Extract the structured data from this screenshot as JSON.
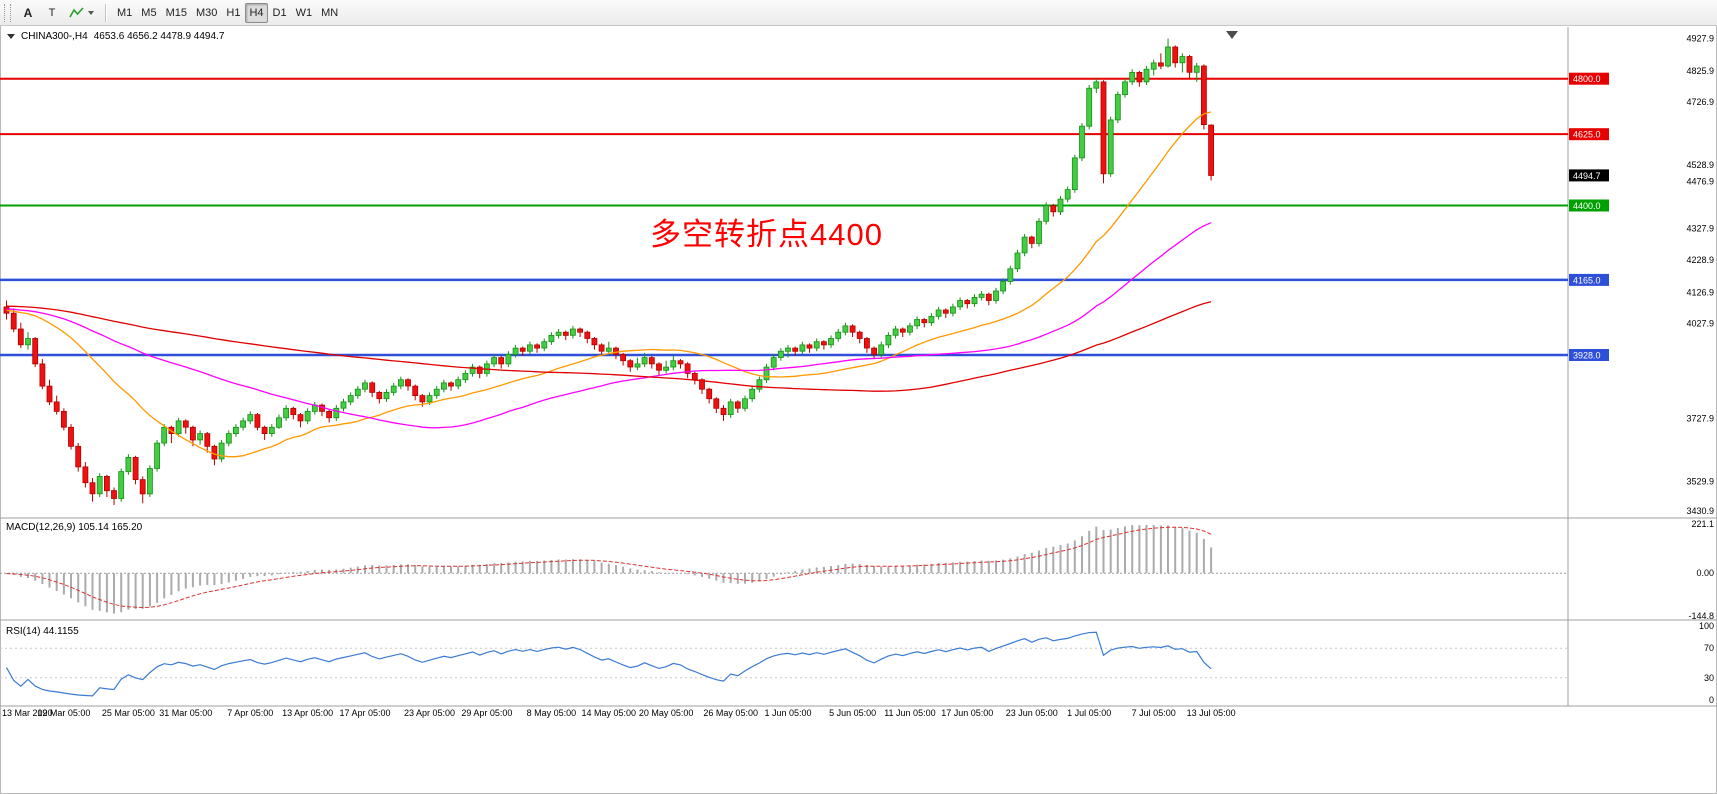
{
  "toolbar": {
    "text_tool_label": "A",
    "textbox_tool_label": "T",
    "timeframes": [
      {
        "label": "M1",
        "active": false
      },
      {
        "label": "M5",
        "active": false
      },
      {
        "label": "M15",
        "active": false
      },
      {
        "label": "M30",
        "active": false
      },
      {
        "label": "H1",
        "active": false
      },
      {
        "label": "H4",
        "active": true
      },
      {
        "label": "D1",
        "active": false
      },
      {
        "label": "W1",
        "active": false
      },
      {
        "label": "MN",
        "active": false
      }
    ]
  },
  "chart": {
    "title_symbol": "CHINA300-,H4",
    "title_ohlc": "4653.6 4656.2 4478.9 4494.7"
  },
  "chart_data": {
    "type": "candlestick",
    "symbol": "CHINA300",
    "timeframe": "H4",
    "ohlc_current": {
      "open": 4653.6,
      "high": 4656.2,
      "low": 4478.9,
      "close": 4494.7
    },
    "y_range": {
      "min": 3420,
      "max": 4960
    },
    "annotation": {
      "text": "多空转折点4400",
      "color": "#ff0000"
    },
    "current_price": {
      "value": 4494.7,
      "label": "4494.7",
      "color": "#000000"
    },
    "levels": [
      {
        "value": 4800,
        "label": "4800.0",
        "color": "#e60000",
        "w": 2
      },
      {
        "value": 4625,
        "label": "4625.0",
        "color": "#e60000",
        "w": 2
      },
      {
        "value": 4400,
        "label": "4400.0",
        "color": "#00a000",
        "w": 2
      },
      {
        "value": 4165,
        "label": "4165.0",
        "color": "#2e4fd7",
        "w": 2.5
      },
      {
        "value": 3928,
        "label": "3928.0",
        "color": "#2e4fd7",
        "w": 2.5
      }
    ],
    "y_axis_ticks": [
      {
        "value": 4927,
        "label": "4927.9"
      },
      {
        "value": 4825,
        "label": "4825.9"
      },
      {
        "value": 4726,
        "label": "4726.9"
      },
      {
        "value": 4528,
        "label": "4528.9"
      },
      {
        "value": 4476,
        "label": "4476.9"
      },
      {
        "value": 4327,
        "label": "4327.9"
      },
      {
        "value": 4228,
        "label": "4228.9"
      },
      {
        "value": 4126,
        "label": "4126.9"
      },
      {
        "value": 4027,
        "label": "4027.9"
      },
      {
        "value": 3727,
        "label": "3727.9"
      },
      {
        "value": 3529,
        "label": "3529.9"
      },
      {
        "value": 3430,
        "label": "3430.9"
      }
    ],
    "x_labels": [
      "13 Mar 2020",
      "19 Mar 05:00",
      "25 Mar 05:00",
      "31 Mar 05:00",
      "7 Apr 05:00",
      "13 Apr 05:00",
      "17 Apr 05:00",
      "23 Apr 05:00",
      "29 Apr 05:00",
      "8 May 05:00",
      "14 May 05:00",
      "20 May 05:00",
      "26 May 05:00",
      "1 Jun 05:00",
      "5 Jun 05:00",
      "11 Jun 05:00",
      "17 Jun 05:00",
      "23 Jun 05:00",
      "1 Jul 05:00",
      "7 Jul 05:00",
      "13 Jul 05:00"
    ],
    "moving_averages": [
      {
        "period": 24,
        "color": "#ff9900"
      },
      {
        "period": 55,
        "color": "#ff00ff"
      },
      {
        "period": 120,
        "color": "#e00000"
      }
    ],
    "candles": [
      [
        4080,
        4100,
        4040,
        4060
      ],
      [
        4060,
        4075,
        4000,
        4010
      ],
      [
        4010,
        4030,
        3950,
        3960
      ],
      [
        3960,
        4000,
        3945,
        3980
      ],
      [
        3980,
        3985,
        3890,
        3900
      ],
      [
        3900,
        3915,
        3820,
        3830
      ],
      [
        3830,
        3850,
        3770,
        3780
      ],
      [
        3780,
        3800,
        3740,
        3750
      ],
      [
        3750,
        3760,
        3690,
        3700
      ],
      [
        3700,
        3710,
        3630,
        3640
      ],
      [
        3640,
        3650,
        3560,
        3575
      ],
      [
        3575,
        3590,
        3510,
        3525
      ],
      [
        3525,
        3540,
        3465,
        3490
      ],
      [
        3490,
        3555,
        3480,
        3545
      ],
      [
        3545,
        3550,
        3480,
        3500
      ],
      [
        3500,
        3510,
        3455,
        3475
      ],
      [
        3475,
        3570,
        3465,
        3560
      ],
      [
        3560,
        3615,
        3550,
        3605
      ],
      [
        3605,
        3610,
        3520,
        3535
      ],
      [
        3535,
        3545,
        3460,
        3490
      ],
      [
        3490,
        3580,
        3480,
        3570
      ],
      [
        3570,
        3660,
        3560,
        3650
      ],
      [
        3650,
        3710,
        3640,
        3700
      ],
      [
        3700,
        3705,
        3650,
        3680
      ],
      [
        3680,
        3730,
        3670,
        3720
      ],
      [
        3720,
        3725,
        3680,
        3700
      ],
      [
        3700,
        3705,
        3640,
        3660
      ],
      [
        3660,
        3690,
        3645,
        3680
      ],
      [
        3680,
        3685,
        3620,
        3640
      ],
      [
        3640,
        3645,
        3580,
        3600
      ],
      [
        3600,
        3660,
        3590,
        3650
      ],
      [
        3650,
        3690,
        3640,
        3680
      ],
      [
        3680,
        3710,
        3670,
        3700
      ],
      [
        3700,
        3730,
        3690,
        3720
      ],
      [
        3720,
        3750,
        3710,
        3740
      ],
      [
        3740,
        3745,
        3690,
        3700
      ],
      [
        3700,
        3705,
        3660,
        3680
      ],
      [
        3680,
        3710,
        3670,
        3700
      ],
      [
        3700,
        3740,
        3695,
        3730
      ],
      [
        3730,
        3770,
        3720,
        3760
      ],
      [
        3760,
        3765,
        3725,
        3740
      ],
      [
        3740,
        3745,
        3700,
        3720
      ],
      [
        3720,
        3760,
        3710,
        3750
      ],
      [
        3750,
        3780,
        3740,
        3770
      ],
      [
        3770,
        3775,
        3735,
        3750
      ],
      [
        3750,
        3755,
        3715,
        3730
      ],
      [
        3730,
        3770,
        3720,
        3760
      ],
      [
        3760,
        3790,
        3750,
        3780
      ],
      [
        3780,
        3810,
        3770,
        3800
      ],
      [
        3800,
        3830,
        3790,
        3820
      ],
      [
        3820,
        3850,
        3810,
        3840
      ],
      [
        3840,
        3845,
        3795,
        3810
      ],
      [
        3810,
        3815,
        3775,
        3790
      ],
      [
        3790,
        3820,
        3780,
        3810
      ],
      [
        3810,
        3840,
        3800,
        3830
      ],
      [
        3830,
        3860,
        3820,
        3850
      ],
      [
        3850,
        3855,
        3815,
        3830
      ],
      [
        3830,
        3835,
        3785,
        3800
      ],
      [
        3800,
        3805,
        3765,
        3780
      ],
      [
        3780,
        3810,
        3770,
        3800
      ],
      [
        3800,
        3830,
        3790,
        3820
      ],
      [
        3820,
        3850,
        3810,
        3840
      ],
      [
        3840,
        3845,
        3815,
        3830
      ],
      [
        3830,
        3860,
        3820,
        3850
      ],
      [
        3850,
        3880,
        3840,
        3870
      ],
      [
        3870,
        3900,
        3860,
        3890
      ],
      [
        3890,
        3895,
        3855,
        3870
      ],
      [
        3870,
        3910,
        3860,
        3900
      ],
      [
        3900,
        3930,
        3890,
        3920
      ],
      [
        3920,
        3925,
        3885,
        3900
      ],
      [
        3900,
        3940,
        3890,
        3930
      ],
      [
        3930,
        3960,
        3920,
        3950
      ],
      [
        3950,
        3955,
        3925,
        3940
      ],
      [
        3940,
        3970,
        3930,
        3960
      ],
      [
        3960,
        3965,
        3935,
        3950
      ],
      [
        3950,
        3980,
        3940,
        3970
      ],
      [
        3970,
        4000,
        3960,
        3990
      ],
      [
        3990,
        4010,
        3980,
        4000
      ],
      [
        4000,
        4005,
        3975,
        3990
      ],
      [
        3990,
        4020,
        3980,
        4010
      ],
      [
        4010,
        4015,
        3985,
        4000
      ],
      [
        4000,
        4005,
        3965,
        3980
      ],
      [
        3980,
        3985,
        3945,
        3960
      ],
      [
        3960,
        3965,
        3925,
        3940
      ],
      [
        3940,
        3970,
        3930,
        3950
      ],
      [
        3950,
        3955,
        3915,
        3930
      ],
      [
        3930,
        3935,
        3895,
        3910
      ],
      [
        3910,
        3915,
        3875,
        3890
      ],
      [
        3890,
        3920,
        3880,
        3900
      ],
      [
        3900,
        3935,
        3890,
        3920
      ],
      [
        3920,
        3925,
        3885,
        3900
      ],
      [
        3900,
        3905,
        3865,
        3880
      ],
      [
        3880,
        3910,
        3870,
        3890
      ],
      [
        3890,
        3925,
        3880,
        3910
      ],
      [
        3910,
        3915,
        3885,
        3900
      ],
      [
        3900,
        3905,
        3855,
        3870
      ],
      [
        3870,
        3875,
        3835,
        3850
      ],
      [
        3850,
        3855,
        3805,
        3820
      ],
      [
        3820,
        3825,
        3775,
        3790
      ],
      [
        3790,
        3795,
        3745,
        3760
      ],
      [
        3760,
        3770,
        3720,
        3740
      ],
      [
        3740,
        3790,
        3730,
        3780
      ],
      [
        3780,
        3785,
        3745,
        3760
      ],
      [
        3760,
        3800,
        3750,
        3790
      ],
      [
        3790,
        3830,
        3780,
        3820
      ],
      [
        3820,
        3860,
        3810,
        3850
      ],
      [
        3850,
        3900,
        3840,
        3890
      ],
      [
        3890,
        3930,
        3880,
        3920
      ],
      [
        3920,
        3950,
        3910,
        3940
      ],
      [
        3940,
        3960,
        3920,
        3950
      ],
      [
        3950,
        3955,
        3925,
        3940
      ],
      [
        3940,
        3970,
        3930,
        3960
      ],
      [
        3960,
        3965,
        3935,
        3950
      ],
      [
        3950,
        3980,
        3940,
        3970
      ],
      [
        3970,
        3975,
        3945,
        3960
      ],
      [
        3960,
        3990,
        3950,
        3980
      ],
      [
        3980,
        4010,
        3970,
        4000
      ],
      [
        4000,
        4030,
        3990,
        4020
      ],
      [
        4020,
        4025,
        3985,
        4000
      ],
      [
        4000,
        4005,
        3965,
        3980
      ],
      [
        3980,
        3985,
        3935,
        3950
      ],
      [
        3950,
        3955,
        3915,
        3930
      ],
      [
        3930,
        3970,
        3920,
        3960
      ],
      [
        3960,
        4000,
        3950,
        3990
      ],
      [
        3990,
        4020,
        3980,
        4010
      ],
      [
        4010,
        4015,
        3985,
        4000
      ],
      [
        4000,
        4030,
        3990,
        4020
      ],
      [
        4020,
        4050,
        4010,
        4040
      ],
      [
        4040,
        4045,
        4015,
        4030
      ],
      [
        4030,
        4060,
        4020,
        4050
      ],
      [
        4050,
        4080,
        4040,
        4070
      ],
      [
        4070,
        4075,
        4045,
        4060
      ],
      [
        4060,
        4090,
        4050,
        4080
      ],
      [
        4080,
        4110,
        4070,
        4100
      ],
      [
        4100,
        4105,
        4075,
        4090
      ],
      [
        4090,
        4120,
        4080,
        4110
      ],
      [
        4110,
        4130,
        4100,
        4120
      ],
      [
        4120,
        4125,
        4085,
        4100
      ],
      [
        4100,
        4140,
        4090,
        4130
      ],
      [
        4130,
        4170,
        4120,
        4160
      ],
      [
        4160,
        4210,
        4150,
        4200
      ],
      [
        4200,
        4260,
        4190,
        4250
      ],
      [
        4250,
        4310,
        4240,
        4300
      ],
      [
        4300,
        4305,
        4265,
        4280
      ],
      [
        4280,
        4360,
        4270,
        4350
      ],
      [
        4350,
        4410,
        4340,
        4400
      ],
      [
        4400,
        4405,
        4365,
        4380
      ],
      [
        4380,
        4430,
        4370,
        4420
      ],
      [
        4420,
        4460,
        4410,
        4450
      ],
      [
        4450,
        4560,
        4440,
        4550
      ],
      [
        4550,
        4660,
        4540,
        4650
      ],
      [
        4650,
        4780,
        4640,
        4770
      ],
      [
        4770,
        4800,
        4755,
        4790
      ],
      [
        4790,
        4795,
        4470,
        4500
      ],
      [
        4500,
        4680,
        4490,
        4670
      ],
      [
        4670,
        4760,
        4660,
        4750
      ],
      [
        4750,
        4800,
        4740,
        4790
      ],
      [
        4790,
        4830,
        4780,
        4820
      ],
      [
        4820,
        4825,
        4775,
        4790
      ],
      [
        4790,
        4840,
        4780,
        4830
      ],
      [
        4830,
        4860,
        4810,
        4850
      ],
      [
        4850,
        4880,
        4830,
        4840
      ],
      [
        4840,
        4927,
        4835,
        4900
      ],
      [
        4900,
        4905,
        4835,
        4850
      ],
      [
        4850,
        4880,
        4820,
        4870
      ],
      [
        4870,
        4875,
        4800,
        4820
      ],
      [
        4820,
        4850,
        4790,
        4840
      ],
      [
        4840,
        4845,
        4640,
        4655
      ],
      [
        4653.6,
        4656.2,
        4478.9,
        4494.7
      ]
    ],
    "prehistory_closes": [
      4085,
      4090,
      4096,
      4102,
      4098,
      4092,
      4088,
      4094,
      4100,
      4106,
      4102,
      4096,
      4090,
      4086,
      4092,
      4098,
      4104,
      4100,
      4094,
      4088,
      4084,
      4090,
      4096,
      4102,
      4108,
      4104,
      4098,
      4092,
      4086,
      4082,
      4088,
      4094,
      4100,
      4096,
      4090,
      4084,
      4080,
      4086,
      4092,
      4098,
      4094,
      4088,
      4082,
      4078,
      4084,
      4090,
      4096,
      4092,
      4086,
      4080,
      4076,
      4082,
      4088,
      4094,
      4090,
      4084,
      4078,
      4074,
      4080,
      4086,
      4092,
      4088,
      4082,
      4076,
      4072,
      4078,
      4084,
      4090,
      4086,
      4080,
      4074,
      4070,
      4076,
      4082,
      4088,
      4084,
      4078,
      4072,
      4068,
      4074,
      4080,
      4086,
      4082,
      4076,
      4070,
      4066,
      4072,
      4078,
      4084,
      4080,
      4074,
      4068,
      4064,
      4070,
      4076,
      4082,
      4078,
      4072,
      4066,
      4062,
      4068,
      4074,
      4080,
      4076,
      4070,
      4064,
      4060,
      4066,
      4072,
      4078,
      4074,
      4068,
      4062,
      4058,
      4064,
      4070,
      4076,
      4072,
      4066,
      4072
    ]
  },
  "macd": {
    "label": "MACD(12,26,9) 105.14 165.20",
    "fast": 12,
    "slow": 26,
    "signal_period": 9,
    "value_text": "105.14",
    "signal_text": "165.20",
    "scale": {
      "top": "221.1",
      "zero": "0.00",
      "bottom": "-144.8"
    }
  },
  "rsi": {
    "label": "RSI(14) 44.1155",
    "period": 14,
    "value_text": "44.1155",
    "scale_labels": [
      "100",
      "70",
      "30",
      "0"
    ],
    "levels": [
      70,
      30
    ]
  }
}
